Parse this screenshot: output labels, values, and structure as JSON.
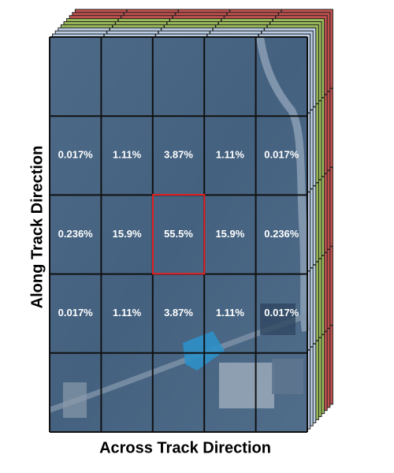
{
  "grid": {
    "rows": [
      [
        "0.017%",
        "1.11%",
        "3.87%",
        "1.11%",
        "0.017%"
      ],
      [
        "0.236%",
        "15.9%",
        "55.5%",
        "15.9%",
        "0.236%"
      ],
      [
        "0.017%",
        "1.11%",
        "3.87%",
        "1.11%",
        "0.017%"
      ]
    ]
  },
  "axes": {
    "along": "Along Track Direction",
    "across": "Across Track Direction"
  }
}
